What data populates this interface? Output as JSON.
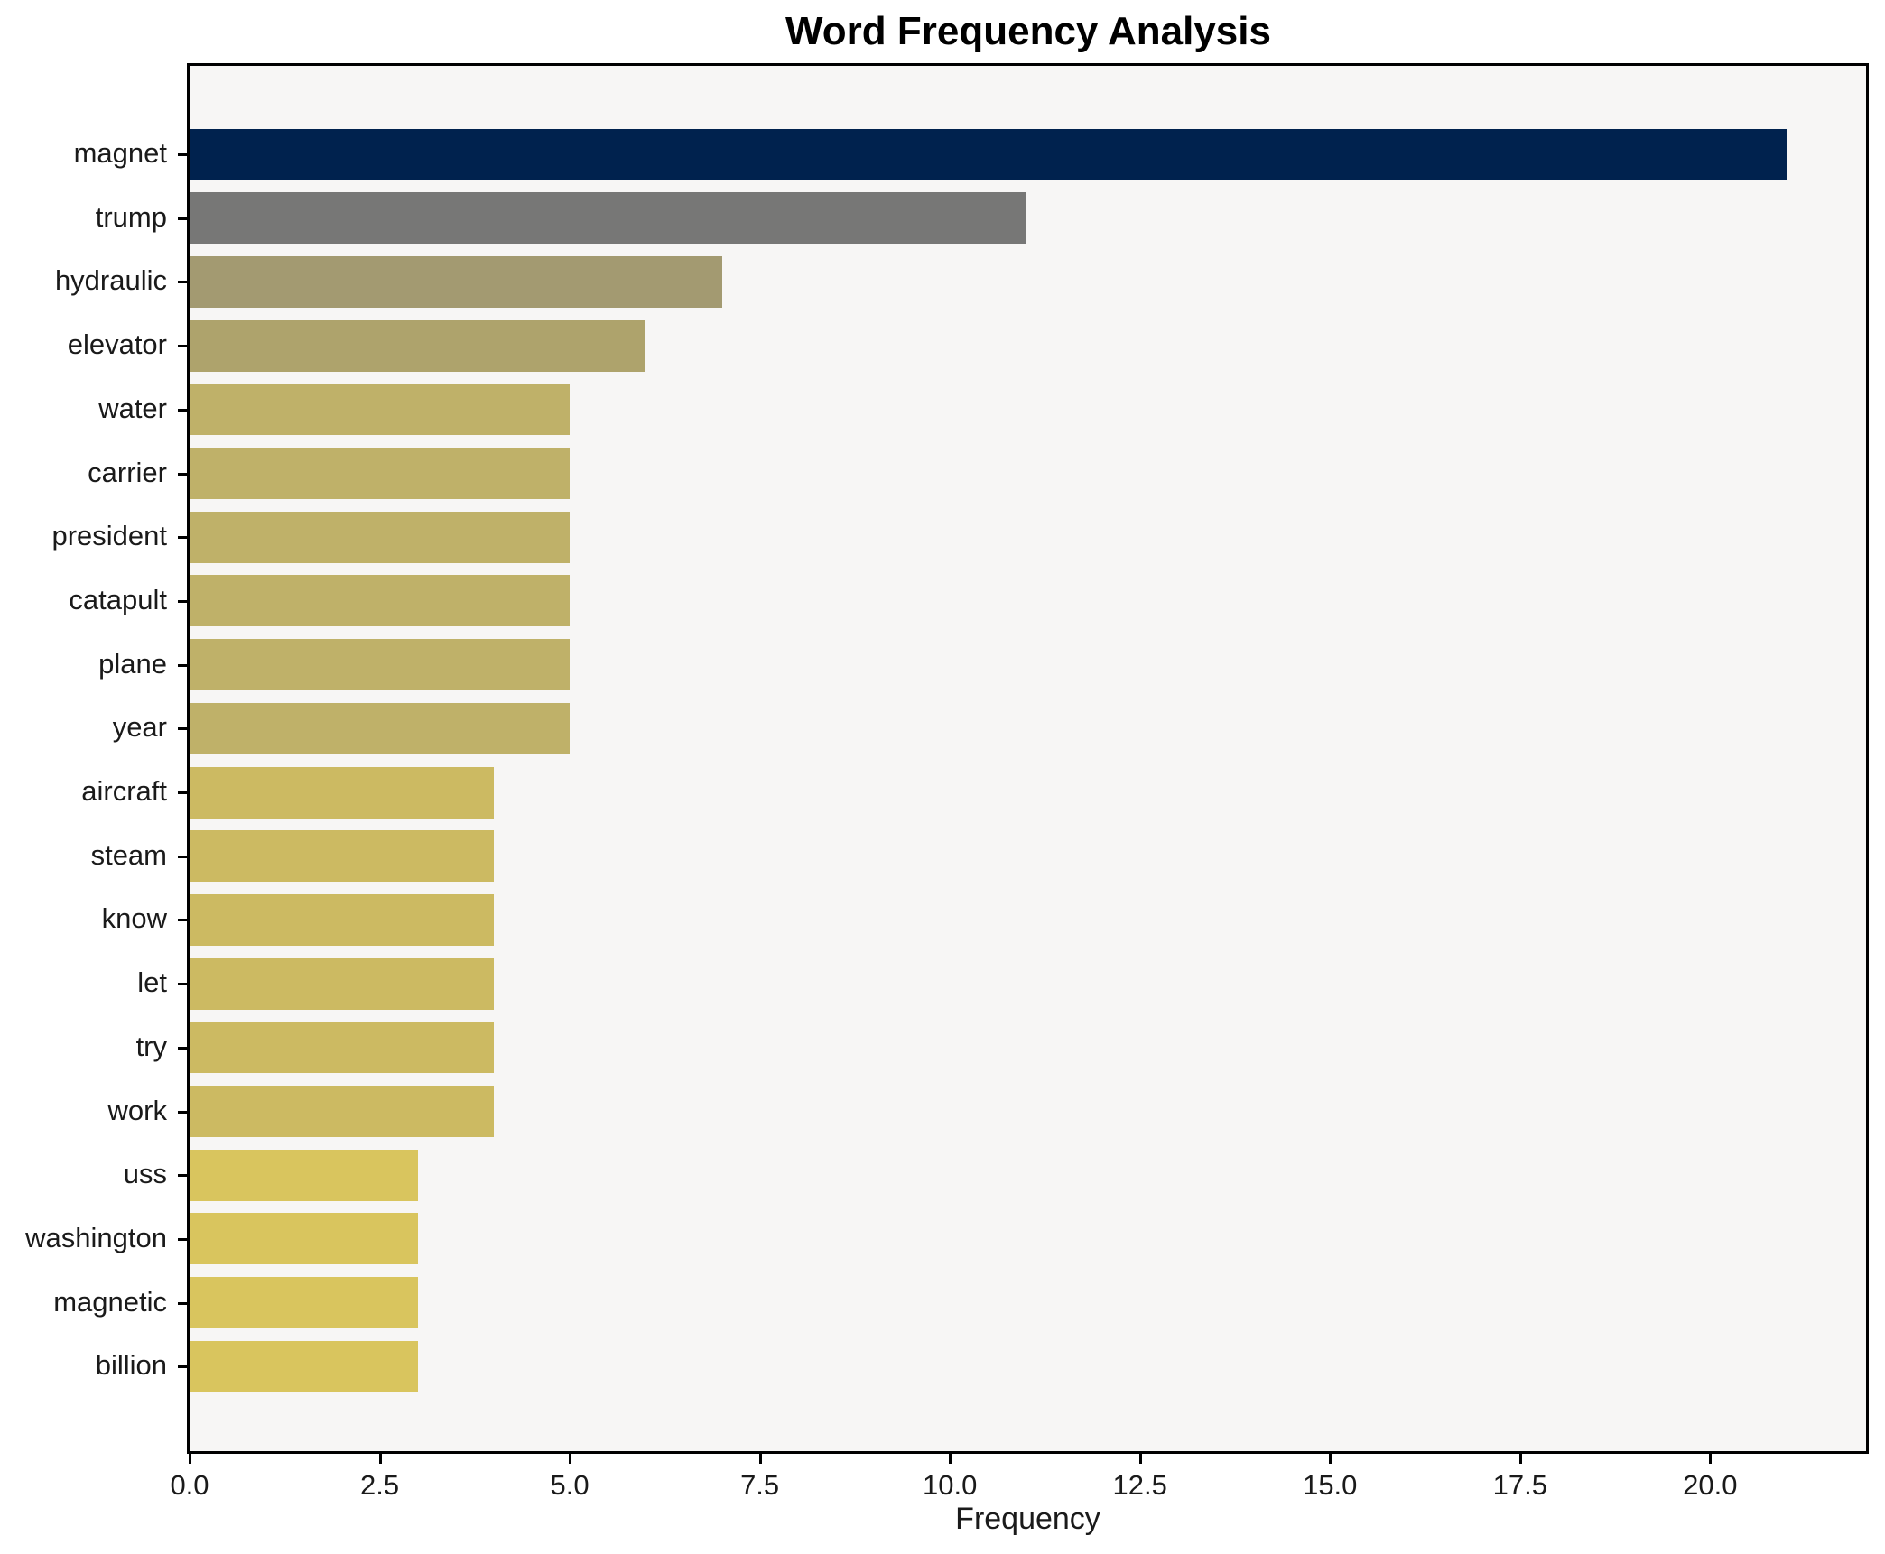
{
  "chart_data": {
    "type": "bar",
    "orientation": "horizontal",
    "title": "Word Frequency Analysis",
    "xlabel": "Frequency",
    "ylabel": "",
    "categories": [
      "magnet",
      "trump",
      "hydraulic",
      "elevator",
      "water",
      "carrier",
      "president",
      "catapult",
      "plane",
      "year",
      "aircraft",
      "steam",
      "know",
      "let",
      "try",
      "work",
      "uss",
      "washington",
      "magnetic",
      "billion"
    ],
    "values": [
      21,
      11,
      7,
      6,
      5,
      5,
      5,
      5,
      5,
      5,
      4,
      4,
      4,
      4,
      4,
      4,
      3,
      3,
      3,
      3
    ],
    "bar_colors": [
      "#00224e",
      "#777776",
      "#a39a71",
      "#aea36c",
      "#bfb169",
      "#bfb169",
      "#bfb169",
      "#bfb169",
      "#bfb169",
      "#bfb169",
      "#ccba62",
      "#ccba62",
      "#ccba62",
      "#ccba62",
      "#ccba62",
      "#ccba62",
      "#d9c55e",
      "#d9c55e",
      "#d9c55e",
      "#d9c55e"
    ],
    "x_tick_labels": [
      "0.0",
      "2.5",
      "5.0",
      "7.5",
      "10.0",
      "12.5",
      "15.0",
      "17.5",
      "20.0"
    ],
    "x_tick_values": [
      0,
      2.5,
      5,
      7.5,
      10,
      12.5,
      15,
      17.5,
      20
    ],
    "xlim": [
      0,
      22.05
    ],
    "grid": false,
    "legend": null,
    "colors": {
      "plot_background": "#f7f6f5",
      "figure_background": "#ffffff",
      "axis": "#000000",
      "text": "#1a1a1a"
    }
  }
}
